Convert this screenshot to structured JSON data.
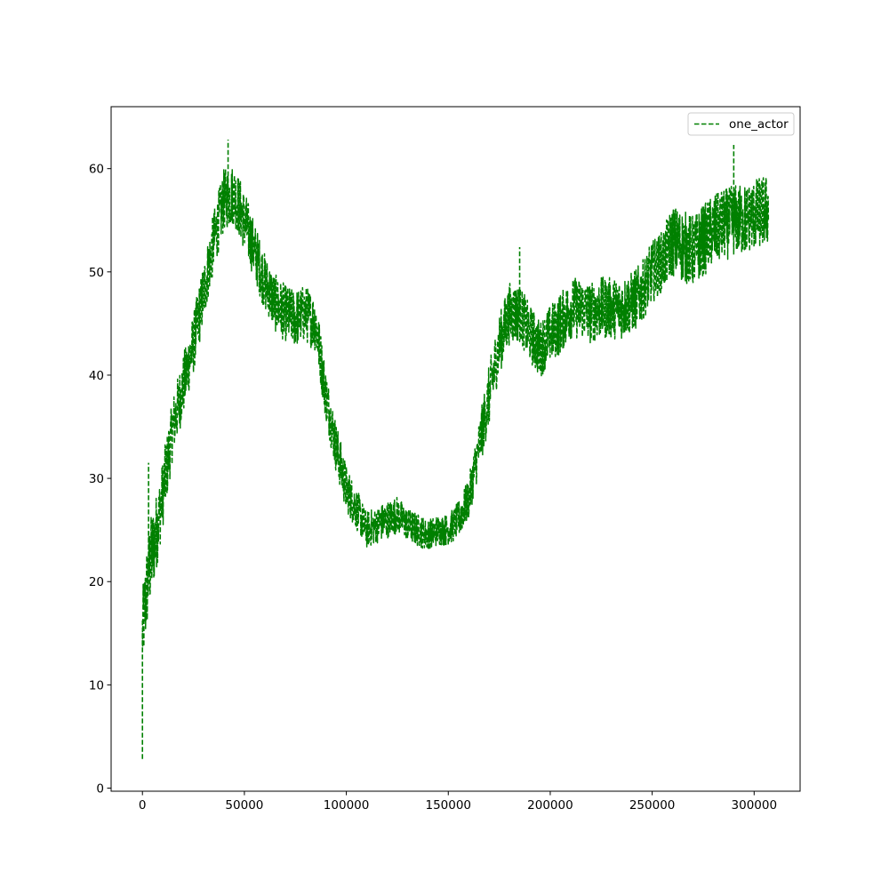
{
  "chart_data": {
    "type": "line",
    "title": "",
    "xlabel": "",
    "ylabel": "",
    "xlim": [
      -15358,
      322540
    ],
    "ylim": [
      -0.3,
      66
    ],
    "xticks": [
      0,
      50000,
      100000,
      150000,
      200000,
      250000,
      300000
    ],
    "xtick_labels": [
      "0",
      "50000",
      "100000",
      "150000",
      "200000",
      "250000",
      "300000"
    ],
    "yticks": [
      0,
      10,
      20,
      30,
      40,
      50,
      60
    ],
    "ytick_labels": [
      "0",
      "10",
      "20",
      "30",
      "40",
      "50",
      "60"
    ],
    "grid": false,
    "legend_position": "upper right",
    "series": [
      {
        "name": "one_actor",
        "color": "#008000",
        "line_style": "dashed",
        "x": [
          0,
          3000,
          8000,
          15000,
          20000,
          25000,
          30000,
          35000,
          40000,
          45000,
          50000,
          55000,
          60000,
          65000,
          70000,
          75000,
          80000,
          85000,
          90000,
          95000,
          100000,
          105000,
          110000,
          115000,
          120000,
          125000,
          130000,
          135000,
          140000,
          145000,
          150000,
          155000,
          160000,
          165000,
          170000,
          175000,
          180000,
          185000,
          190000,
          195000,
          200000,
          205000,
          210000,
          215000,
          220000,
          225000,
          230000,
          235000,
          240000,
          245000,
          250000,
          255000,
          260000,
          265000,
          270000,
          275000,
          280000,
          285000,
          290000,
          295000,
          300000,
          307000
        ],
        "y": [
          15,
          21,
          26,
          35,
          39,
          43,
          48,
          53,
          57,
          57.5,
          55,
          52,
          49,
          47,
          46,
          45.5,
          46,
          45,
          38,
          33,
          29,
          27,
          25,
          25.5,
          26,
          26.5,
          25.5,
          25,
          24.5,
          25,
          25,
          26,
          28,
          33,
          38,
          43,
          46,
          46,
          44,
          42.5,
          44,
          45,
          46.5,
          46.5,
          46,
          46.5,
          46.5,
          46.5,
          47,
          48,
          50,
          51,
          53,
          52.5,
          52,
          53,
          54,
          54.5,
          55,
          55,
          55.5,
          56
        ],
        "band_half_width": [
          4,
          4.5,
          3.5,
          3,
          3,
          3,
          3,
          3,
          3,
          3,
          3,
          2.8,
          2.8,
          2.8,
          2.8,
          2.8,
          2.8,
          2.8,
          2.5,
          2.5,
          2.3,
          2,
          1.8,
          1.8,
          1.8,
          1.8,
          1.6,
          1.6,
          1.5,
          1.5,
          1.5,
          1.8,
          2,
          2.5,
          3,
          3,
          3,
          2.8,
          2.8,
          2.8,
          2.8,
          3,
          3,
          3,
          3,
          3,
          3,
          3,
          3,
          3,
          3,
          3,
          3.5,
          3.5,
          3.5,
          3.5,
          3.5,
          3.5,
          3.5,
          3.5,
          3.5,
          3.5
        ],
        "extremes": [
          {
            "x": 0,
            "y": 2.7
          },
          {
            "x": 3000,
            "y": 31.5
          },
          {
            "x": 42000,
            "y": 62.8
          },
          {
            "x": 185000,
            "y": 52.4
          },
          {
            "x": 290000,
            "y": 62.3
          }
        ]
      }
    ]
  }
}
